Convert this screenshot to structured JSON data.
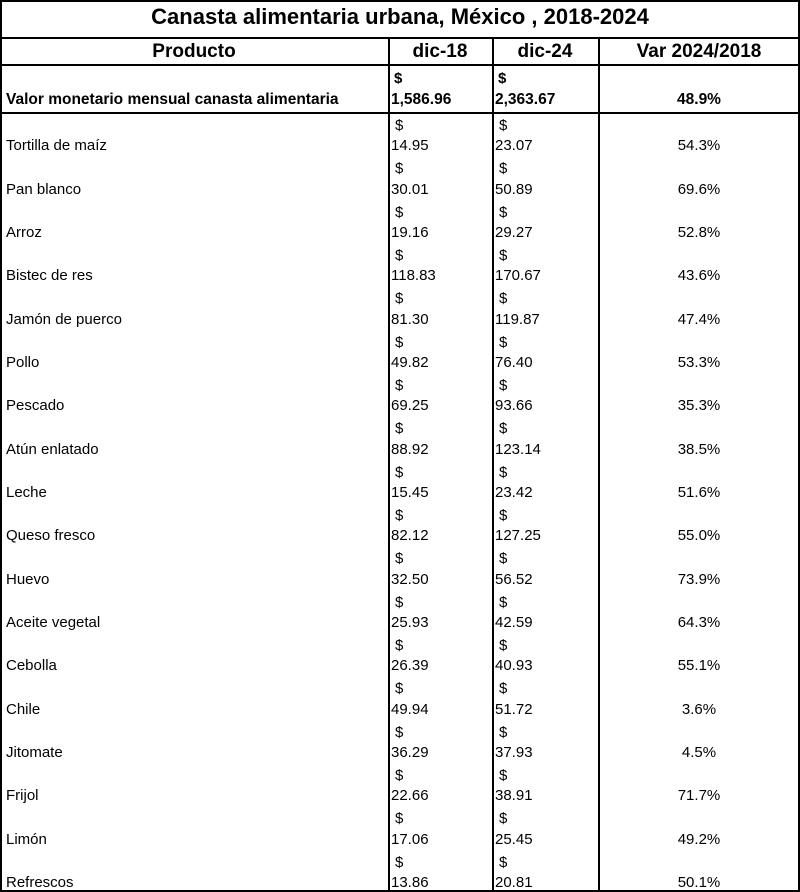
{
  "header": {
    "title": "Canasta alimentaria urbana, México , 2018-2024"
  },
  "table": {
    "columns": [
      "Producto",
      "dic-18",
      "dic-24",
      "Var 2024/2018"
    ],
    "currency": "$",
    "summary": [
      "Valor monetario mensual canasta alimentaria",
      "1,586.96",
      "2,363.67",
      "48.9%"
    ],
    "rows": [
      [
        "Tortilla de maíz",
        "14.95",
        "23.07",
        "54.3%"
      ],
      [
        "Pan blanco",
        "30.01",
        "50.89",
        "69.6%"
      ],
      [
        "Arroz",
        "19.16",
        "29.27",
        "52.8%"
      ],
      [
        "Bistec de res",
        "118.83",
        "170.67",
        "43.6%"
      ],
      [
        "Jamón de puerco",
        "81.30",
        "119.87",
        "47.4%"
      ],
      [
        "Pollo",
        "49.82",
        "76.40",
        "53.3%"
      ],
      [
        "Pescado",
        "69.25",
        "93.66",
        "35.3%"
      ],
      [
        "Atún enlatado",
        "88.92",
        "123.14",
        "38.5%"
      ],
      [
        "Leche",
        "15.45",
        "23.42",
        "51.6%"
      ],
      [
        "Queso fresco",
        "82.12",
        "127.25",
        "55.0%"
      ],
      [
        "Huevo",
        "32.50",
        "56.52",
        "73.9%"
      ],
      [
        "Aceite vegetal",
        "25.93",
        "42.59",
        "64.3%"
      ],
      [
        "Cebolla",
        "26.39",
        "40.93",
        "55.1%"
      ],
      [
        "Chile",
        "49.94",
        "51.72",
        "3.6%"
      ],
      [
        "Jitomate",
        "36.29",
        "37.93",
        "4.5%"
      ],
      [
        "Frijol",
        "22.66",
        "38.91",
        "71.7%"
      ],
      [
        "Limón",
        "17.06",
        "25.45",
        "49.2%"
      ],
      [
        "Refrescos",
        "13.86",
        "20.81",
        "50.1%"
      ]
    ]
  }
}
